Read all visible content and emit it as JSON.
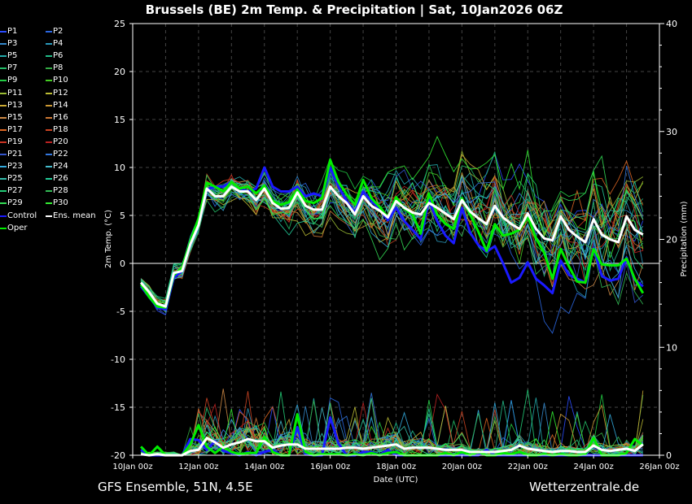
{
  "chart_data": {
    "type": "line",
    "title": "Brussels  (BE)  2m Temp. & Precipitation | Sat, 10Jan2026 06Z",
    "xlabel": "Date (UTC)",
    "ylabel_left": "2m Temp. (°C)",
    "ylabel_right": "Precipitation (mm)",
    "ylim_left": [
      -20,
      25
    ],
    "ylim_right": [
      0,
      40
    ],
    "yticks_left": [
      "25",
      "20",
      "15",
      "10",
      "5",
      "0",
      "-5",
      "-10",
      "-15",
      "-20"
    ],
    "yticks_right": [
      "40",
      "30",
      "20",
      "10",
      "0"
    ],
    "xlim_days": [
      0,
      16
    ],
    "xticks": [
      "10Jan 00z",
      "12Jan 00z",
      "14Jan 00z",
      "16Jan 00z",
      "18Jan 00z",
      "20Jan 00z",
      "22Jan 00z",
      "24Jan 00z",
      "26Jan 00z"
    ],
    "step_hours": 6,
    "start_hour": 6,
    "grid": true,
    "zero_line": true,
    "legend_position": "left",
    "legend": [
      {
        "name": "P1",
        "color": "#2a4cff"
      },
      {
        "name": "P2",
        "color": "#2a66e0"
      },
      {
        "name": "P3",
        "color": "#3388cc"
      },
      {
        "name": "P4",
        "color": "#2a99bb"
      },
      {
        "name": "P5",
        "color": "#22aaaa"
      },
      {
        "name": "P6",
        "color": "#22bb88"
      },
      {
        "name": "P7",
        "color": "#22bb66"
      },
      {
        "name": "P8",
        "color": "#33aa44"
      },
      {
        "name": "P9",
        "color": "#22cc44"
      },
      {
        "name": "P10",
        "color": "#44cc22"
      },
      {
        "name": "P11",
        "color": "#99bb33"
      },
      {
        "name": "P12",
        "color": "#bbbb33"
      },
      {
        "name": "P13",
        "color": "#ccaa33"
      },
      {
        "name": "P14",
        "color": "#cc9933"
      },
      {
        "name": "P15",
        "color": "#cc8844"
      },
      {
        "name": "P16",
        "color": "#cc7733"
      },
      {
        "name": "P17",
        "color": "#dd6622"
      },
      {
        "name": "P18",
        "color": "#cc4422"
      },
      {
        "name": "P19",
        "color": "#cc3322"
      },
      {
        "name": "P20",
        "color": "#bb2222"
      },
      {
        "name": "P21",
        "color": "#3355cc"
      },
      {
        "name": "P22",
        "color": "#3377dd"
      },
      {
        "name": "P23",
        "color": "#33aadd"
      },
      {
        "name": "P24",
        "color": "#44bbcc"
      },
      {
        "name": "P25",
        "color": "#33bbaa"
      },
      {
        "name": "P26",
        "color": "#22cc99"
      },
      {
        "name": "P27",
        "color": "#22cc77"
      },
      {
        "name": "P28",
        "color": "#33bb55"
      },
      {
        "name": "P29",
        "color": "#33dd55"
      },
      {
        "name": "P30",
        "color": "#33ee33"
      },
      {
        "name": "Control",
        "color": "#1a1aff"
      },
      {
        "name": "Ens. mean",
        "color": "#ffffff"
      },
      {
        "name": "Oper",
        "color": "#00ee00"
      }
    ],
    "series": [
      {
        "name": "Ens. mean",
        "color": "#ffffff",
        "width": 3,
        "temp": [
          -2,
          -3,
          -4.2,
          -4.5,
          -1,
          -0.8,
          2,
          4,
          7.8,
          7,
          7,
          8,
          7.5,
          7.5,
          6.6,
          7.8,
          6.3,
          5.7,
          5.8,
          7.4,
          6,
          5.6,
          5.6,
          8,
          7,
          6.3,
          5.1,
          7,
          6,
          5.5,
          4.8,
          6.5,
          5.8,
          5.3,
          5.1,
          6.3,
          5.8,
          5.2,
          4.6,
          6.6,
          5.4,
          4.7,
          4.1,
          6,
          4.8,
          4.1,
          3.6,
          5.2,
          3.6,
          2.6,
          2.4,
          4.9,
          3.5,
          2.8,
          2.2,
          4.6,
          3,
          2.5,
          2.2,
          4.9,
          3.5,
          3
        ],
        "precip": [
          0.1,
          0,
          0.1,
          0,
          0,
          0,
          0.4,
          0.5,
          1.6,
          1.2,
          0.7,
          1,
          1.2,
          1.5,
          1.3,
          1.3,
          0.7,
          0.9,
          1,
          1,
          0.6,
          0.6,
          0.6,
          0.6,
          0.6,
          0.7,
          0.7,
          0.6,
          0.7,
          0.8,
          0.9,
          1,
          0.6,
          0.7,
          0.7,
          0.7,
          0.6,
          0.5,
          0.5,
          0.5,
          0.3,
          0.3,
          0.3,
          0.3,
          0.4,
          0.5,
          0.9,
          0.6,
          0.5,
          0.4,
          0.3,
          0.4,
          0.4,
          0.3,
          0.3,
          0.9,
          0.5,
          0.4,
          0.5,
          0.6,
          0.4,
          1
        ]
      },
      {
        "name": "Oper",
        "color": "#00ee00",
        "width": 3,
        "temp": [
          -2.2,
          -3.5,
          -4.5,
          -4.6,
          -1.2,
          -0.5,
          2.3,
          4.7,
          8.4,
          8,
          7.5,
          8.5,
          7.8,
          8,
          7.3,
          8.1,
          6.5,
          6.1,
          6.4,
          7.7,
          6.5,
          6.3,
          6.8,
          10.8,
          8.5,
          7.2,
          6.1,
          8.7,
          6.8,
          5.9,
          4.8,
          6.9,
          5.7,
          5.1,
          3.1,
          7.3,
          5.1,
          4.1,
          3.6,
          6.8,
          5.1,
          3.3,
          1.3,
          4.1,
          2.9,
          3.1,
          3.5,
          4.9,
          2.6,
          1.1,
          -1.6,
          1.5,
          -0.3,
          -1.9,
          -2,
          1.5,
          -0.1,
          -0.2,
          -0.2,
          0.5,
          -1.6,
          -3.1
        ],
        "precip": [
          0.8,
          0,
          0.8,
          0,
          0,
          0,
          1,
          2.8,
          0.8,
          0.2,
          0.8,
          0.3,
          0.1,
          0.2,
          0.2,
          1.7,
          0.3,
          0,
          0,
          3.8,
          0.3,
          0,
          0.1,
          0.1,
          0.1,
          0,
          0.1,
          0,
          0.2,
          0,
          0.2,
          0.3,
          0,
          0,
          0,
          0,
          0,
          0.2,
          0,
          0.3,
          0,
          0.3,
          0,
          0,
          0.2,
          0.1,
          0.3,
          0,
          0,
          0.1,
          0,
          0.1,
          0,
          0,
          0.1,
          1.6,
          0,
          0,
          0,
          0.2,
          1.5,
          0.9
        ]
      },
      {
        "name": "Control",
        "color": "#1a1aff",
        "width": 3,
        "temp": [
          -2.4,
          -3.5,
          -4.6,
          -4.8,
          -1.5,
          -0.8,
          2,
          4.4,
          7.7,
          8,
          8,
          8.5,
          7.8,
          7.5,
          7.8,
          10,
          8,
          7.5,
          7.5,
          8,
          7,
          7.3,
          7,
          10,
          8,
          6.5,
          5.3,
          7.5,
          6.5,
          5.7,
          4.5,
          5.8,
          4.4,
          3.5,
          2.5,
          6.6,
          4.4,
          2.9,
          2.1,
          5.8,
          3.2,
          1.9,
          1.2,
          1.8,
          0,
          -2,
          -1.5,
          0.1,
          -1.6,
          -2.3,
          -3.1,
          0.3,
          -1.2,
          -1.6,
          -2,
          1.6,
          -1.3,
          -1.8,
          -1.6,
          0.6,
          -1.7,
          -2.4
        ],
        "precip": [
          0.5,
          0,
          0,
          0,
          0,
          0,
          1.5,
          1.4,
          0.5,
          1.3,
          0.4,
          0.2,
          0,
          0.3,
          0,
          0.3,
          0.5,
          0,
          0,
          2.6,
          0.1,
          0,
          0,
          3.5,
          1.1,
          0,
          0,
          0.3,
          0.3,
          0,
          0.5,
          0,
          0,
          0,
          0,
          0,
          0,
          0,
          0,
          0,
          0,
          0,
          0.5,
          0,
          0,
          0,
          0,
          0,
          0,
          0,
          0,
          0,
          0,
          0,
          0,
          0,
          0,
          0,
          0,
          0,
          0,
          0
        ]
      }
    ]
  },
  "footer": {
    "left": "GFS Ensemble, 51N, 4.5E",
    "right": "Wetterzentrale.de"
  }
}
